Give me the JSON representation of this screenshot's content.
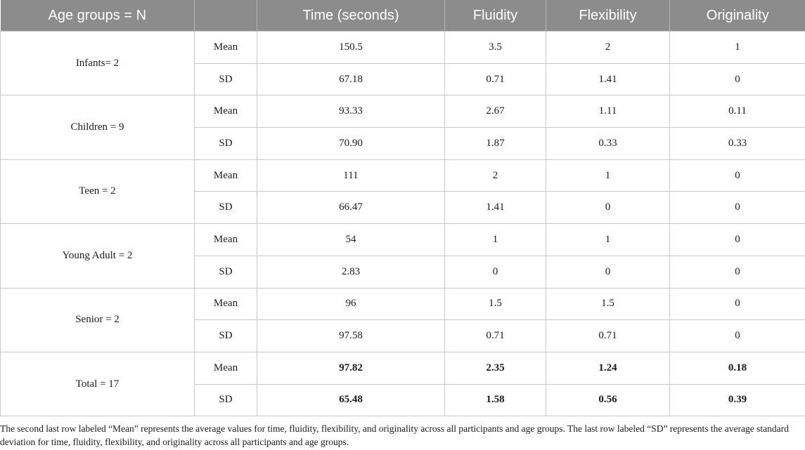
{
  "headers": [
    "Age groups = N",
    "",
    "Time (seconds)",
    "Fluidity",
    "Flexibility",
    "Originality"
  ],
  "groups": [
    {
      "label": "Infants= 2",
      "rows": [
        {
          "stat": "Mean",
          "time": "150.5",
          "fluidity": "3.5",
          "flexibility": "2",
          "originality": "1"
        },
        {
          "stat": "SD",
          "time": "67.18",
          "fluidity": "0.71",
          "flexibility": "1.41",
          "originality": "0"
        }
      ]
    },
    {
      "label": "Children = 9",
      "rows": [
        {
          "stat": "Mean",
          "time": "93.33",
          "fluidity": "2.67",
          "flexibility": "1.11",
          "originality": "0.11"
        },
        {
          "stat": "SD",
          "time": "70.90",
          "fluidity": "1.87",
          "flexibility": "0.33",
          "originality": "0.33"
        }
      ]
    },
    {
      "label": "Teen = 2",
      "rows": [
        {
          "stat": "Mean",
          "time": "111",
          "fluidity": "2",
          "flexibility": "1",
          "originality": "0"
        },
        {
          "stat": "SD",
          "time": "66.47",
          "fluidity": "1.41",
          "flexibility": "0",
          "originality": "0"
        }
      ]
    },
    {
      "label": "Young Adult = 2",
      "rows": [
        {
          "stat": "Mean",
          "time": "54",
          "fluidity": "1",
          "flexibility": "1",
          "originality": "0"
        },
        {
          "stat": "SD",
          "time": "2.83",
          "fluidity": "0",
          "flexibility": "0",
          "originality": "0"
        }
      ]
    },
    {
      "label": "Senior = 2",
      "rows": [
        {
          "stat": "Mean",
          "time": "96",
          "fluidity": "1.5",
          "flexibility": "1.5",
          "originality": "0"
        },
        {
          "stat": "SD",
          "time": "97.58",
          "fluidity": "0.71",
          "flexibility": "0.71",
          "originality": "0"
        }
      ]
    },
    {
      "label": "Total = 17",
      "bold": true,
      "rows": [
        {
          "stat": "Mean",
          "time": "97.82",
          "fluidity": "2.35",
          "flexibility": "1.24",
          "originality": "0.18"
        },
        {
          "stat": "SD",
          "time": "65.48",
          "fluidity": "1.58",
          "flexibility": "0.56",
          "originality": "0.39"
        }
      ]
    }
  ],
  "footnote": "The second last row labeled “Mean” represents the average values for time, fluidity, flexibility, and originality across all participants and age groups. The last row labeled “SD” represents the average standard deviation for time, fluidity, flexibility, and originality across all participants and age groups."
}
